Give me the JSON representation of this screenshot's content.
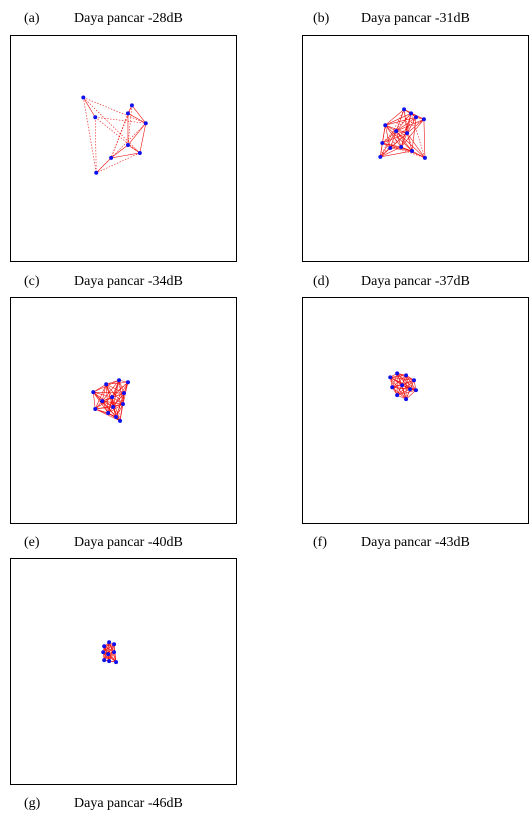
{
  "panels": [
    {
      "letter": "(a)",
      "title": "Daya pancar -28dB"
    },
    {
      "letter": "(b)",
      "title": "Daya pancar -31dB"
    },
    {
      "letter": "(c)",
      "title": "Daya pancar -34dB"
    },
    {
      "letter": "(d)",
      "title": "Daya pancar -37dB"
    },
    {
      "letter": "(e)",
      "title": "Daya pancar -40dB"
    },
    {
      "letter": "(f)",
      "title": "Daya pancar -43dB"
    },
    {
      "letter": "(g)",
      "title": "Daya pancar -46dB"
    }
  ],
  "colors": {
    "node": "#1010ee",
    "link": "#ee1010",
    "frame": "#000000"
  }
}
